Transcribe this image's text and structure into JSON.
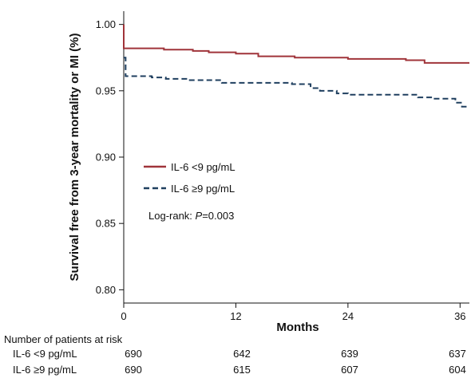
{
  "chart_data": {
    "type": "line",
    "xlabel": "Months",
    "ylabel": "Survival free from 3-year mortality or MI (%)",
    "xlim": [
      0,
      37
    ],
    "ylim": [
      0.79,
      1.01
    ],
    "x_ticks": [
      "0",
      "12",
      "24",
      "36"
    ],
    "y_ticks": [
      "0.80",
      "0.85",
      "0.90",
      "0.95",
      "1.00"
    ],
    "grid": false,
    "legend_position": "center-left",
    "series": [
      {
        "name": "IL-6 <9 pg/mL",
        "color": "#a0343a",
        "style": "solid",
        "points": [
          [
            0,
            1.0
          ],
          [
            0,
            0.982
          ],
          [
            4.3,
            0.981
          ],
          [
            7.4,
            0.98
          ],
          [
            9.1,
            0.979
          ],
          [
            12.0,
            0.978
          ],
          [
            14.4,
            0.976
          ],
          [
            18.3,
            0.975
          ],
          [
            24.0,
            0.974
          ],
          [
            30.2,
            0.973
          ],
          [
            32.2,
            0.971
          ],
          [
            37.0,
            0.971
          ]
        ]
      },
      {
        "name": "IL-6 ≥9 pg/mL",
        "color": "#1f3f5f",
        "style": "dashed",
        "points": [
          [
            0,
            0.975
          ],
          [
            0.2,
            0.961
          ],
          [
            3.0,
            0.96
          ],
          [
            4.5,
            0.959
          ],
          [
            6.8,
            0.958
          ],
          [
            10.5,
            0.956
          ],
          [
            18.0,
            0.955
          ],
          [
            20.0,
            0.952
          ],
          [
            21.0,
            0.95
          ],
          [
            22.8,
            0.948
          ],
          [
            24.0,
            0.947
          ],
          [
            31.0,
            0.947
          ],
          [
            31.5,
            0.945
          ],
          [
            33.0,
            0.944
          ],
          [
            35.5,
            0.941
          ],
          [
            36.2,
            0.938
          ],
          [
            37.0,
            0.938
          ]
        ]
      }
    ],
    "annotation": {
      "prefix": "Log-rank: ",
      "italic": "P",
      "suffix": "=0.003"
    }
  },
  "risk_table": {
    "title": "Number of patients at risk",
    "columns": [
      "0",
      "12",
      "24",
      "36"
    ],
    "rows": [
      {
        "label": "IL-6 <9 pg/mL",
        "values": [
          "690",
          "642",
          "639",
          "637"
        ]
      },
      {
        "label": "IL-6 ≥9 pg/mL",
        "values": [
          "690",
          "615",
          "607",
          "604"
        ]
      }
    ]
  }
}
